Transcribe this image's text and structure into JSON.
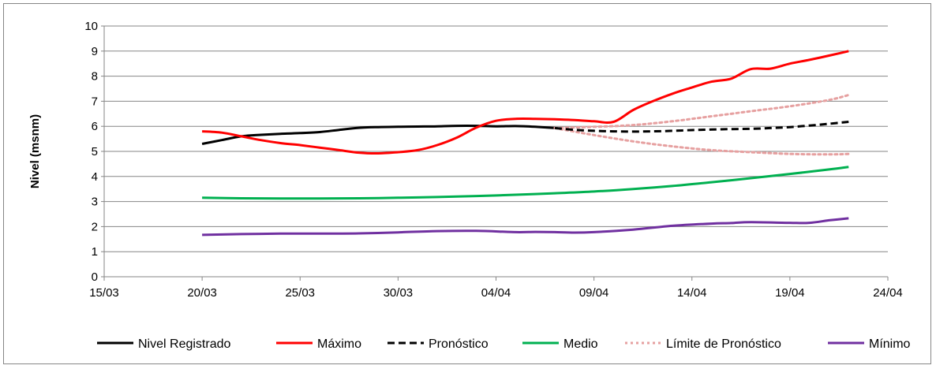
{
  "chart_data": {
    "type": "line",
    "ylabel": "Nivel (msnm)",
    "xlabel": "",
    "title": "",
    "ylim": [
      0,
      10
    ],
    "yticks": [
      "0",
      "1",
      "2",
      "3",
      "4",
      "5",
      "6",
      "7",
      "8",
      "9",
      "10"
    ],
    "xlim": [
      "15/03",
      "24/04"
    ],
    "xticks": [
      "15/03",
      "20/03",
      "25/03",
      "30/03",
      "04/04",
      "09/04",
      "14/04",
      "19/04",
      "24/04"
    ],
    "grid": true,
    "legend_position": "bottom",
    "series": [
      {
        "name": "Nivel Registrado",
        "color": "#000000",
        "style": "solid",
        "points": [
          [
            "20/03",
            5.3
          ],
          [
            "21/03",
            5.45
          ],
          [
            "22/03",
            5.6
          ],
          [
            "23/03",
            5.66
          ],
          [
            "24/03",
            5.7
          ],
          [
            "25/03",
            5.73
          ],
          [
            "26/03",
            5.77
          ],
          [
            "27/03",
            5.86
          ],
          [
            "28/03",
            5.94
          ],
          [
            "29/03",
            5.97
          ],
          [
            "30/03",
            5.98
          ],
          [
            "31/03",
            5.99
          ],
          [
            "01/04",
            6.0
          ],
          [
            "02/04",
            6.02
          ],
          [
            "03/04",
            6.02
          ],
          [
            "04/04",
            6.0
          ],
          [
            "05/04",
            6.01
          ],
          [
            "06/04",
            5.98
          ],
          [
            "07/04",
            5.93
          ]
        ]
      },
      {
        "name": "Máximo",
        "color": "#ff0000",
        "style": "solid",
        "points": [
          [
            "20/03",
            5.8
          ],
          [
            "21/03",
            5.75
          ],
          [
            "22/03",
            5.6
          ],
          [
            "23/03",
            5.45
          ],
          [
            "24/03",
            5.33
          ],
          [
            "25/03",
            5.25
          ],
          [
            "26/03",
            5.15
          ],
          [
            "27/03",
            5.05
          ],
          [
            "28/03",
            4.95
          ],
          [
            "29/03",
            4.92
          ],
          [
            "30/03",
            4.97
          ],
          [
            "31/03",
            5.05
          ],
          [
            "01/04",
            5.25
          ],
          [
            "02/04",
            5.55
          ],
          [
            "03/04",
            5.95
          ],
          [
            "04/04",
            6.22
          ],
          [
            "05/04",
            6.3
          ],
          [
            "06/04",
            6.3
          ],
          [
            "07/04",
            6.28
          ],
          [
            "08/04",
            6.25
          ],
          [
            "09/04",
            6.2
          ],
          [
            "10/04",
            6.18
          ],
          [
            "11/04",
            6.65
          ],
          [
            "12/04",
            7.0
          ],
          [
            "13/04",
            7.3
          ],
          [
            "14/04",
            7.55
          ],
          [
            "15/04",
            7.78
          ],
          [
            "16/04",
            7.9
          ],
          [
            "17/04",
            8.28
          ],
          [
            "18/04",
            8.3
          ],
          [
            "19/04",
            8.5
          ],
          [
            "20/04",
            8.65
          ],
          [
            "21/04",
            8.82
          ],
          [
            "22/04",
            9.0
          ]
        ]
      },
      {
        "name": "Pronóstico",
        "color": "#000000",
        "style": "dashed",
        "points": [
          [
            "07/04",
            5.93
          ],
          [
            "08/04",
            5.86
          ],
          [
            "09/04",
            5.82
          ],
          [
            "10/04",
            5.8
          ],
          [
            "11/04",
            5.79
          ],
          [
            "12/04",
            5.8
          ],
          [
            "13/04",
            5.82
          ],
          [
            "14/04",
            5.85
          ],
          [
            "15/04",
            5.87
          ],
          [
            "16/04",
            5.89
          ],
          [
            "17/04",
            5.9
          ],
          [
            "18/04",
            5.93
          ],
          [
            "19/04",
            5.97
          ],
          [
            "20/04",
            6.03
          ],
          [
            "21/04",
            6.1
          ],
          [
            "22/04",
            6.18
          ]
        ]
      },
      {
        "name": "Medio",
        "color": "#00b050",
        "style": "solid",
        "points": [
          [
            "20/03",
            3.15
          ],
          [
            "22/03",
            3.13
          ],
          [
            "24/03",
            3.12
          ],
          [
            "26/03",
            3.12
          ],
          [
            "28/03",
            3.13
          ],
          [
            "30/03",
            3.15
          ],
          [
            "01/04",
            3.18
          ],
          [
            "03/04",
            3.22
          ],
          [
            "05/04",
            3.27
          ],
          [
            "07/04",
            3.33
          ],
          [
            "09/04",
            3.4
          ],
          [
            "11/04",
            3.5
          ],
          [
            "13/04",
            3.62
          ],
          [
            "15/04",
            3.77
          ],
          [
            "17/04",
            3.93
          ],
          [
            "19/04",
            4.1
          ],
          [
            "21/04",
            4.28
          ],
          [
            "22/04",
            4.38
          ]
        ]
      },
      {
        "name": "Límite de Pronóstico",
        "color": "#e6a0a0",
        "style": "dotted",
        "points": [
          [
            "07/04",
            5.93
          ],
          [
            "09/04",
            5.98
          ],
          [
            "11/04",
            6.05
          ],
          [
            "13/04",
            6.2
          ],
          [
            "15/04",
            6.4
          ],
          [
            "17/04",
            6.6
          ],
          [
            "19/04",
            6.8
          ],
          [
            "21/04",
            7.05
          ],
          [
            "22/04",
            7.25
          ]
        ]
      },
      {
        "name": "Límite de Pronóstico (inferior)",
        "color": "#e6a0a0",
        "style": "dotted",
        "points": [
          [
            "07/04",
            5.93
          ],
          [
            "09/04",
            5.65
          ],
          [
            "11/04",
            5.4
          ],
          [
            "13/04",
            5.2
          ],
          [
            "15/04",
            5.05
          ],
          [
            "17/04",
            4.97
          ],
          [
            "19/04",
            4.9
          ],
          [
            "21/04",
            4.88
          ],
          [
            "22/04",
            4.9
          ]
        ]
      },
      {
        "name": "Mínimo",
        "color": "#7030a0",
        "style": "solid",
        "points": [
          [
            "20/03",
            1.67
          ],
          [
            "22/03",
            1.7
          ],
          [
            "24/03",
            1.72
          ],
          [
            "26/03",
            1.72
          ],
          [
            "28/03",
            1.73
          ],
          [
            "30/03",
            1.77
          ],
          [
            "01/04",
            1.82
          ],
          [
            "03/04",
            1.83
          ],
          [
            "05/04",
            1.78
          ],
          [
            "06/04",
            1.79
          ],
          [
            "07/04",
            1.78
          ],
          [
            "08/04",
            1.76
          ],
          [
            "09/04",
            1.78
          ],
          [
            "11/04",
            1.88
          ],
          [
            "13/04",
            2.03
          ],
          [
            "15/04",
            2.12
          ],
          [
            "16/04",
            2.14
          ],
          [
            "17/04",
            2.18
          ],
          [
            "19/04",
            2.15
          ],
          [
            "20/04",
            2.15
          ],
          [
            "21/04",
            2.25
          ],
          [
            "22/04",
            2.33
          ]
        ]
      }
    ],
    "legend": [
      {
        "label": "Nivel Registrado",
        "color": "#000000",
        "style": "solid"
      },
      {
        "label": "Máximo",
        "color": "#ff0000",
        "style": "solid"
      },
      {
        "label": "Pronóstico",
        "color": "#000000",
        "style": "dashed"
      },
      {
        "label": "Medio",
        "color": "#00b050",
        "style": "solid"
      },
      {
        "label": "Límite de Pronóstico",
        "color": "#e6a0a0",
        "style": "dotted"
      },
      {
        "label": "Mínimo",
        "color": "#7030a0",
        "style": "solid"
      }
    ]
  }
}
